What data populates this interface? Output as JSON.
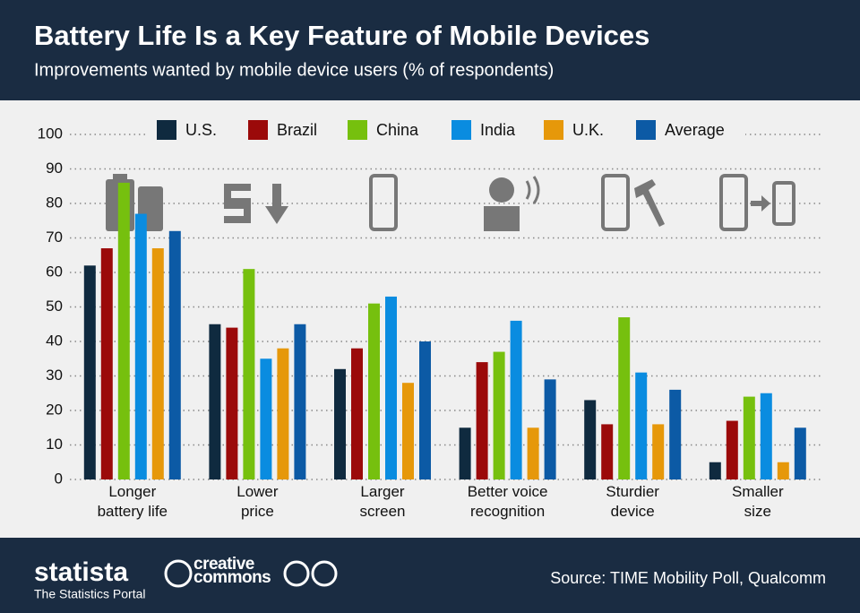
{
  "chart_data": {
    "type": "bar",
    "title": "Battery Life Is a Key Feature of Mobile Devices",
    "subtitle": "Improvements wanted by mobile device users (% of respondents)",
    "categories": [
      "Longer\nbattery life",
      "Lower\nprice",
      "Larger\nscreen",
      "Better voice\nrecognition",
      "Sturdier\ndevice",
      "Smaller\nsize"
    ],
    "series": [
      {
        "name": "U.S.",
        "color": "#0f2a3f",
        "values": [
          62,
          45,
          32,
          15,
          23,
          5
        ]
      },
      {
        "name": "Brazil",
        "color": "#9b0a0a",
        "values": [
          67,
          44,
          38,
          34,
          16,
          17
        ]
      },
      {
        "name": "China",
        "color": "#76c00e",
        "values": [
          86,
          61,
          51,
          37,
          47,
          24
        ]
      },
      {
        "name": "India",
        "color": "#0a8ce0",
        "values": [
          77,
          35,
          53,
          46,
          31,
          25
        ]
      },
      {
        "name": "U.K.",
        "color": "#e6980a",
        "values": [
          67,
          38,
          28,
          15,
          16,
          5
        ]
      },
      {
        "name": "Average",
        "color": "#0c5aa5",
        "values": [
          72,
          45,
          40,
          29,
          26,
          15
        ]
      }
    ],
    "ylim": [
      0,
      100
    ],
    "yticks": [
      0,
      10,
      20,
      30,
      40,
      50,
      60,
      70,
      80,
      90,
      100
    ],
    "grid": true,
    "legend": "top",
    "source": "Source: TIME Mobility Poll, Qualcomm"
  },
  "footer": {
    "brand": "statista",
    "tagline": "The Statistics Portal",
    "license": "creative\ncommons"
  }
}
